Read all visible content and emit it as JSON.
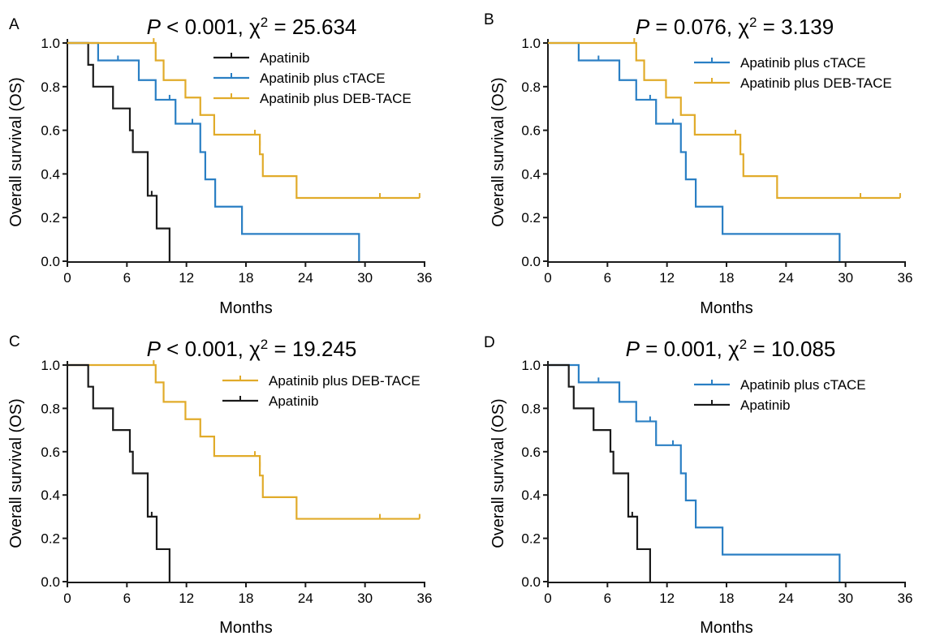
{
  "chart_data": [
    {
      "panel": "A",
      "type": "line",
      "step": true,
      "stat": {
        "p_prefix": "P",
        "p_text": " < 0.001, χ",
        "sup": "2",
        "chi_text": " = 25.634"
      },
      "xlabel": "Months",
      "ylabel": "Overall survival (OS)",
      "xlim": [
        0,
        36
      ],
      "ylim": [
        0,
        1.0
      ],
      "xticks": [
        "0",
        "6",
        "12",
        "18",
        "24",
        "30",
        "36"
      ],
      "yticks": [
        "0.0",
        "0.2",
        "0.4",
        "0.6",
        "0.8",
        "1.0"
      ],
      "series": [
        {
          "name": "Apatinib",
          "color": "#1a1a1a",
          "steps": [
            [
              0,
              1.0
            ],
            [
              2.1,
              0.9
            ],
            [
              2.6,
              0.8
            ],
            [
              4.6,
              0.7
            ],
            [
              6.3,
              0.6
            ],
            [
              6.6,
              0.5
            ],
            [
              8.1,
              0.3
            ],
            [
              9.0,
              0.15
            ],
            [
              10.3,
              0.0
            ]
          ],
          "censor": [
            [
              8.5,
              0.3
            ]
          ],
          "end": 10.3
        },
        {
          "name": "Apatinib plus cTACE",
          "color": "#2a7fc4",
          "steps": [
            [
              0,
              1.0
            ],
            [
              3.1,
              0.92
            ],
            [
              7.2,
              0.83
            ],
            [
              8.9,
              0.74
            ],
            [
              10.9,
              0.63
            ],
            [
              13.4,
              0.5
            ],
            [
              13.9,
              0.375
            ],
            [
              14.9,
              0.25
            ],
            [
              17.6,
              0.125
            ],
            [
              29.4,
              0.0
            ]
          ],
          "censor": [
            [
              5.1,
              0.92
            ],
            [
              10.3,
              0.74
            ],
            [
              12.6,
              0.63
            ]
          ],
          "end": 29.4
        },
        {
          "name": "Apatinib plus DEB-TACE",
          "color": "#e1ab2a",
          "steps": [
            [
              0,
              1.0
            ],
            [
              8.9,
              0.92
            ],
            [
              9.7,
              0.83
            ],
            [
              11.9,
              0.75
            ],
            [
              13.4,
              0.67
            ],
            [
              14.8,
              0.58
            ],
            [
              19.4,
              0.49
            ],
            [
              19.7,
              0.39
            ],
            [
              23.1,
              0.29
            ]
          ],
          "censor": [
            [
              8.7,
              1.0
            ],
            [
              18.9,
              0.58
            ],
            [
              19.4,
              0.53
            ],
            [
              31.5,
              0.29
            ],
            [
              35.5,
              0.29
            ]
          ],
          "end": 35.5
        }
      ]
    },
    {
      "panel": "B",
      "type": "line",
      "step": true,
      "stat": {
        "p_prefix": "P",
        "p_text": " = 0.076, χ",
        "sup": "2",
        "chi_text": " = 3.139"
      },
      "xlabel": "Months",
      "ylabel": "Overall survival (OS)",
      "xlim": [
        0,
        36
      ],
      "ylim": [
        0,
        1.0
      ],
      "xticks": [
        "0",
        "6",
        "12",
        "18",
        "24",
        "30",
        "36"
      ],
      "yticks": [
        "0.0",
        "0.2",
        "0.4",
        "0.6",
        "0.8",
        "1.0"
      ],
      "series": [
        {
          "name": "Apatinib plus cTACE",
          "color": "#2a7fc4",
          "steps": [
            [
              0,
              1.0
            ],
            [
              3.1,
              0.92
            ],
            [
              7.2,
              0.83
            ],
            [
              8.9,
              0.74
            ],
            [
              10.9,
              0.63
            ],
            [
              13.4,
              0.5
            ],
            [
              13.9,
              0.375
            ],
            [
              14.9,
              0.25
            ],
            [
              17.6,
              0.125
            ],
            [
              29.4,
              0.0
            ]
          ],
          "censor": [
            [
              5.1,
              0.92
            ],
            [
              10.3,
              0.74
            ],
            [
              12.6,
              0.63
            ]
          ],
          "end": 29.4
        },
        {
          "name": "Apatinib plus DEB-TACE",
          "color": "#e1ab2a",
          "steps": [
            [
              0,
              1.0
            ],
            [
              8.9,
              0.92
            ],
            [
              9.7,
              0.83
            ],
            [
              11.9,
              0.75
            ],
            [
              13.4,
              0.67
            ],
            [
              14.8,
              0.58
            ],
            [
              19.4,
              0.49
            ],
            [
              19.7,
              0.39
            ],
            [
              23.1,
              0.29
            ]
          ],
          "censor": [
            [
              8.7,
              1.0
            ],
            [
              18.9,
              0.58
            ],
            [
              19.4,
              0.53
            ],
            [
              31.5,
              0.29
            ],
            [
              35.5,
              0.29
            ]
          ],
          "end": 35.5
        }
      ]
    },
    {
      "panel": "C",
      "type": "line",
      "step": true,
      "stat": {
        "p_prefix": "P",
        "p_text": " < 0.001, χ",
        "sup": "2",
        "chi_text": " = 19.245"
      },
      "xlabel": "Months",
      "ylabel": "Overall survival (OS)",
      "xlim": [
        0,
        36
      ],
      "ylim": [
        0,
        1.0
      ],
      "xticks": [
        "0",
        "6",
        "12",
        "18",
        "24",
        "30",
        "36"
      ],
      "yticks": [
        "0.0",
        "0.2",
        "0.4",
        "0.6",
        "0.8",
        "1.0"
      ],
      "series": [
        {
          "name": "Apatinib plus DEB-TACE",
          "color": "#e1ab2a",
          "steps": [
            [
              0,
              1.0
            ],
            [
              8.9,
              0.92
            ],
            [
              9.7,
              0.83
            ],
            [
              11.9,
              0.75
            ],
            [
              13.4,
              0.67
            ],
            [
              14.8,
              0.58
            ],
            [
              19.4,
              0.49
            ],
            [
              19.7,
              0.39
            ],
            [
              23.1,
              0.29
            ]
          ],
          "censor": [
            [
              8.7,
              1.0
            ],
            [
              18.9,
              0.58
            ],
            [
              19.4,
              0.53
            ],
            [
              31.5,
              0.29
            ],
            [
              35.5,
              0.29
            ]
          ],
          "end": 35.5
        },
        {
          "name": "Apatinib",
          "color": "#1a1a1a",
          "steps": [
            [
              0,
              1.0
            ],
            [
              2.1,
              0.9
            ],
            [
              2.6,
              0.8
            ],
            [
              4.6,
              0.7
            ],
            [
              6.3,
              0.6
            ],
            [
              6.6,
              0.5
            ],
            [
              8.1,
              0.3
            ],
            [
              9.0,
              0.15
            ],
            [
              10.3,
              0.0
            ]
          ],
          "censor": [
            [
              8.5,
              0.3
            ]
          ],
          "end": 10.3
        }
      ]
    },
    {
      "panel": "D",
      "type": "line",
      "step": true,
      "stat": {
        "p_prefix": "P",
        "p_text": " = 0.001, χ",
        "sup": "2",
        "chi_text": " = 10.085"
      },
      "xlabel": "Months",
      "ylabel": "Overall survival (OS)",
      "xlim": [
        0,
        36
      ],
      "ylim": [
        0,
        1.0
      ],
      "xticks": [
        "0",
        "6",
        "12",
        "18",
        "24",
        "30",
        "36"
      ],
      "yticks": [
        "0.0",
        "0.2",
        "0.4",
        "0.6",
        "0.8",
        "1.0"
      ],
      "series": [
        {
          "name": "Apatinib plus cTACE",
          "color": "#2a7fc4",
          "steps": [
            [
              0,
              1.0
            ],
            [
              3.1,
              0.92
            ],
            [
              7.2,
              0.83
            ],
            [
              8.9,
              0.74
            ],
            [
              10.9,
              0.63
            ],
            [
              13.4,
              0.5
            ],
            [
              13.9,
              0.375
            ],
            [
              14.9,
              0.25
            ],
            [
              17.6,
              0.125
            ],
            [
              29.4,
              0.0
            ]
          ],
          "censor": [
            [
              5.1,
              0.92
            ],
            [
              10.3,
              0.74
            ],
            [
              12.6,
              0.63
            ]
          ],
          "end": 29.4
        },
        {
          "name": "Apatinib",
          "color": "#1a1a1a",
          "steps": [
            [
              0,
              1.0
            ],
            [
              2.1,
              0.9
            ],
            [
              2.6,
              0.8
            ],
            [
              4.6,
              0.7
            ],
            [
              6.3,
              0.6
            ],
            [
              6.6,
              0.5
            ],
            [
              8.1,
              0.3
            ],
            [
              9.0,
              0.15
            ],
            [
              10.3,
              0.0
            ]
          ],
          "censor": [
            [
              8.5,
              0.3
            ]
          ],
          "end": 10.3
        }
      ]
    }
  ]
}
